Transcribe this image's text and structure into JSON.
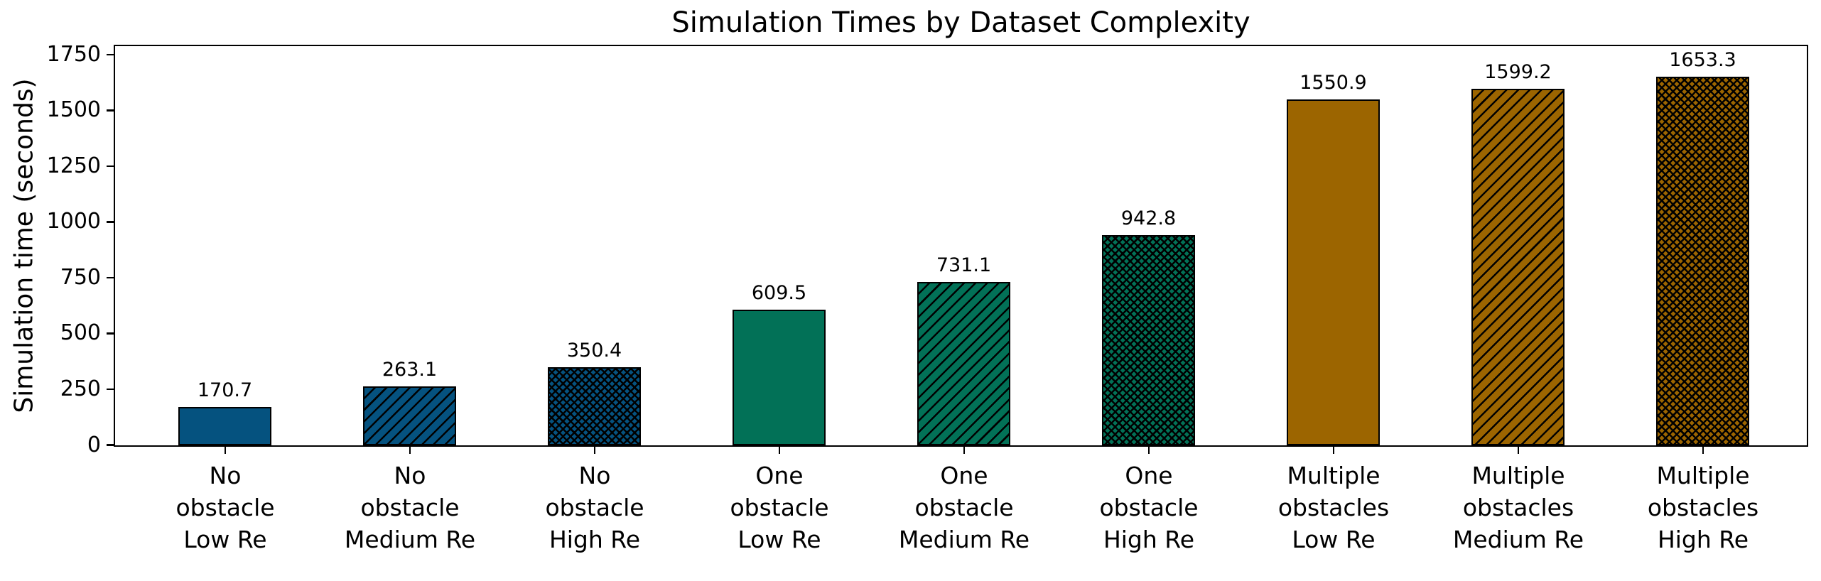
{
  "chart_data": {
    "type": "bar",
    "title": "Simulation Times by Dataset Complexity",
    "xlabel": "",
    "ylabel": "Simulation time (seconds)",
    "categories": [
      "No\nobstacle\nLow Re",
      "No\nobstacle\nMedium Re",
      "No\nobstacle\nHigh Re",
      "One\nobstacle\nLow Re",
      "One\nobstacle\nMedium Re",
      "One\nobstacle\nHigh Re",
      "Multiple\nobstacles\nLow Re",
      "Multiple\nobstacles\nMedium Re",
      "Multiple\nobstacles\nHigh Re"
    ],
    "values": [
      170.7,
      263.1,
      350.4,
      609.5,
      731.1,
      942.8,
      1550.9,
      1599.2,
      1653.3
    ],
    "value_labels": [
      "170.7",
      "263.1",
      "350.4",
      "609.5",
      "731.1",
      "942.8",
      "1550.9",
      "1599.2",
      "1653.3"
    ],
    "bar_colors": [
      "#05527f",
      "#05527f",
      "#05527f",
      "#027157",
      "#027157",
      "#027157",
      "#9c6500",
      "#9c6500",
      "#9c6500"
    ],
    "hatches": [
      "",
      "/",
      "x",
      "",
      "/",
      "x",
      "",
      "/",
      "x"
    ],
    "hatch_color": "#000000",
    "edge_color": "#000000",
    "yticks": [
      "0",
      "250",
      "500",
      "750",
      "1000",
      "1250",
      "1500",
      "1750"
    ],
    "ylim": [
      0,
      1786
    ],
    "grid": false,
    "legend": null
  }
}
